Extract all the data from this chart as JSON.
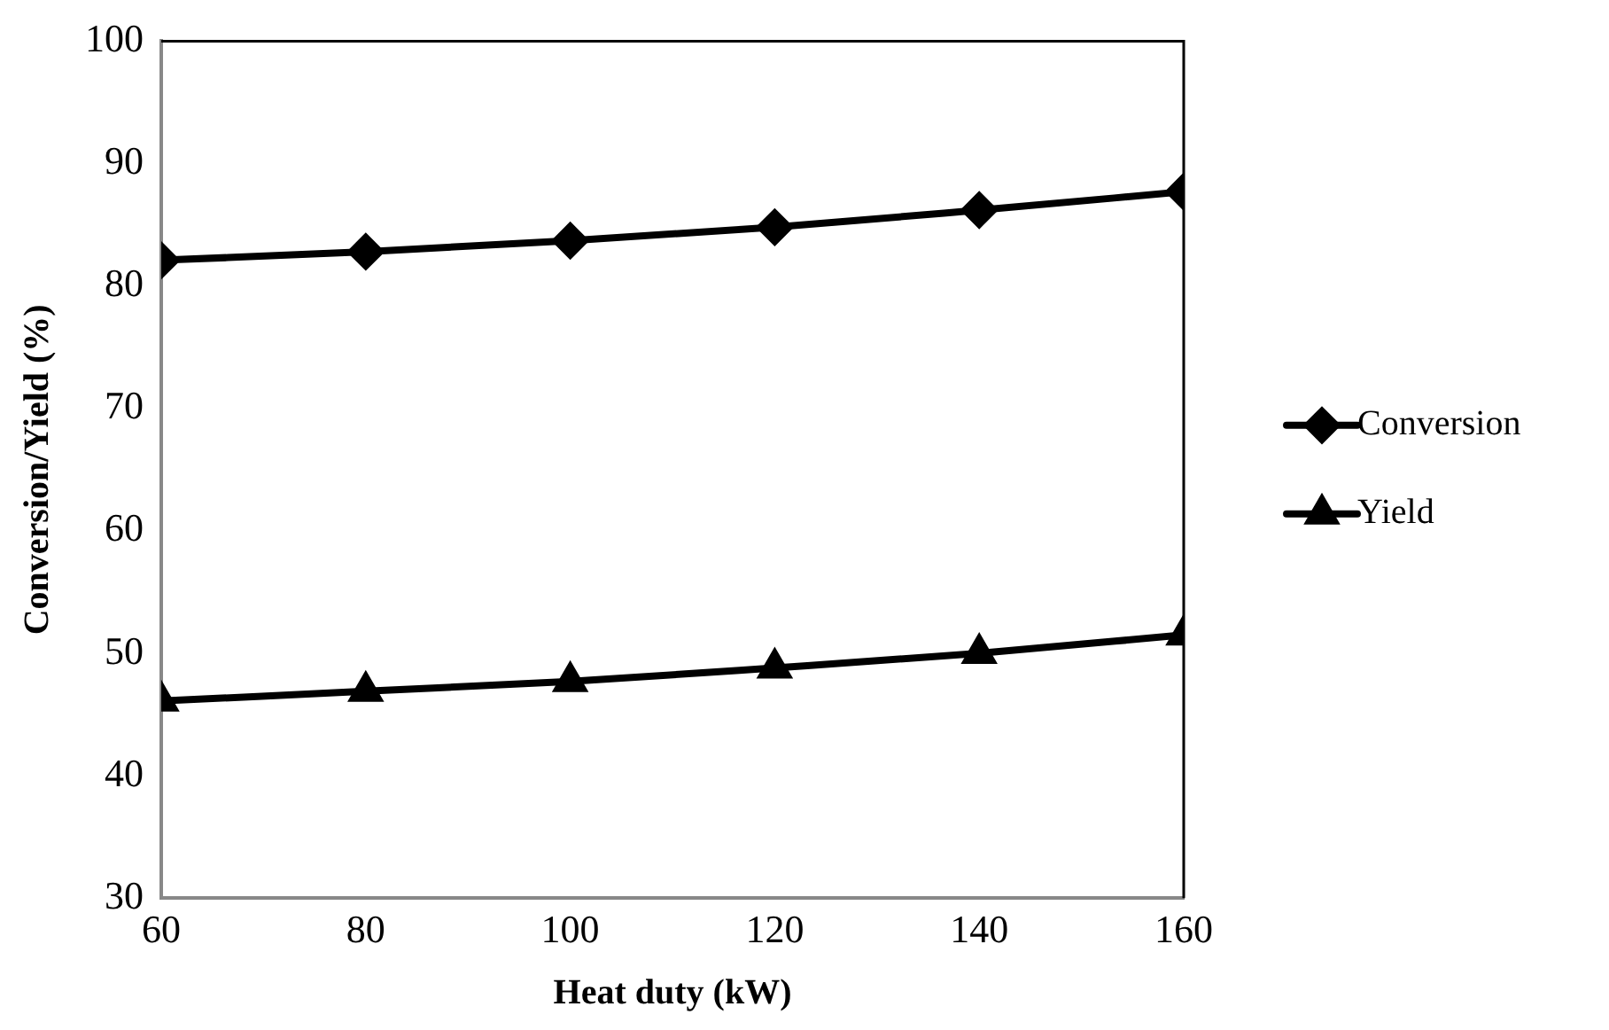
{
  "chart_data": {
    "type": "line",
    "xlabel": "Heat duty (kW)",
    "ylabel": "Conversion/Yield (%)",
    "x": [
      60,
      80,
      100,
      120,
      140,
      160
    ],
    "series": [
      {
        "name": "Conversion",
        "color": "#000000",
        "marker": "diamond",
        "values": [
          82.1,
          82.8,
          83.7,
          84.8,
          86.2,
          87.7
        ]
      },
      {
        "name": "Yield",
        "color": "#000000",
        "marker": "triangle",
        "values": [
          46.1,
          46.9,
          47.7,
          48.8,
          50.0,
          51.5
        ]
      }
    ],
    "xlim": [
      60,
      160
    ],
    "xticks": [
      60,
      80,
      100,
      120,
      140,
      160
    ],
    "ylim": [
      30,
      100
    ],
    "yticks": [
      30,
      40,
      50,
      60,
      70,
      80,
      90,
      100
    ],
    "grid": false,
    "legend": "right",
    "line_style": "solid"
  }
}
